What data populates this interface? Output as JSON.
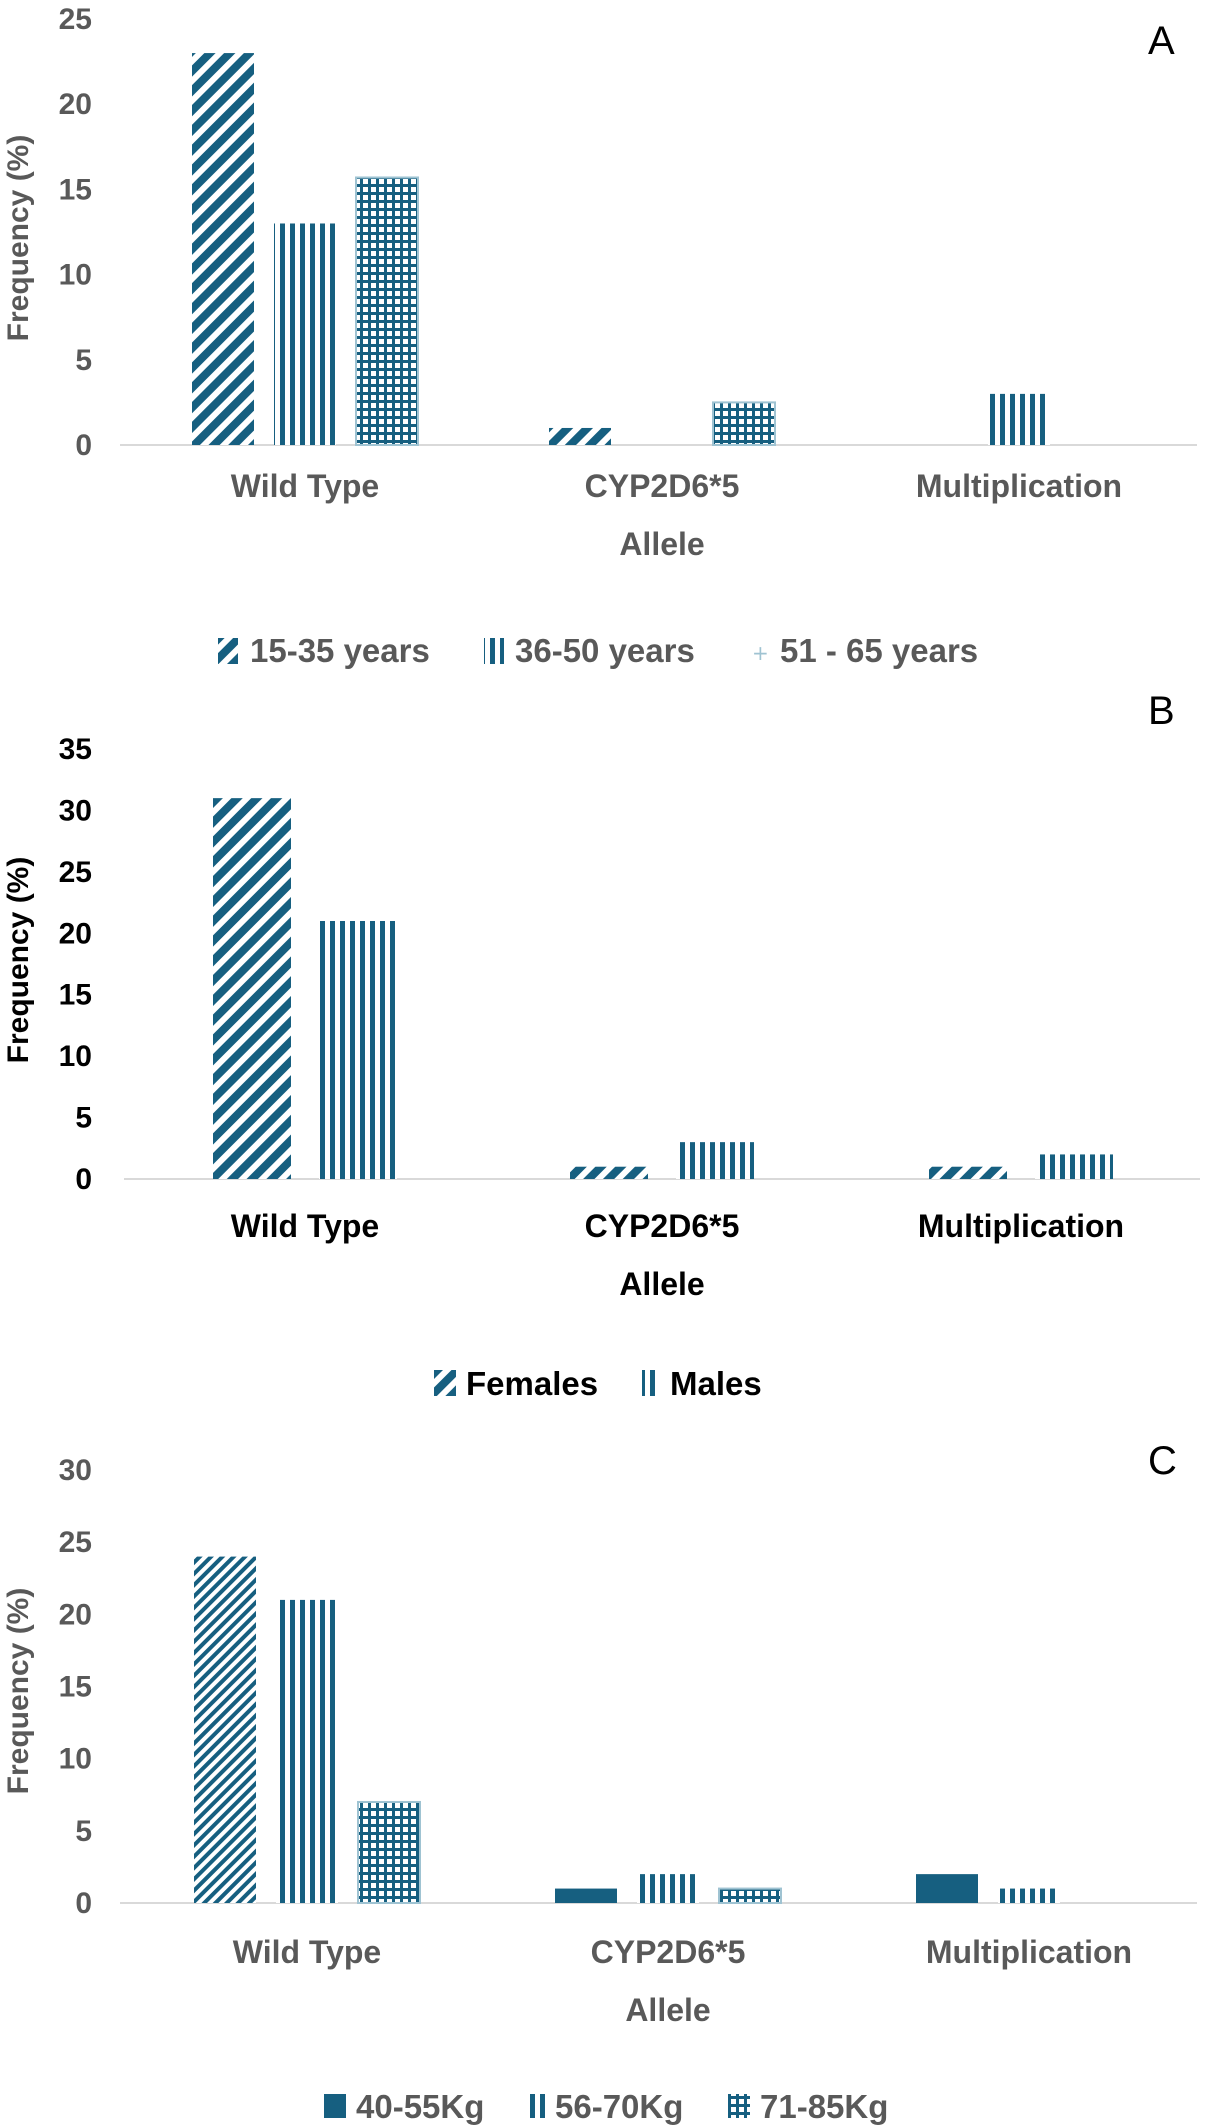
{
  "colors": {
    "bar": "#165f80",
    "axis": "#d9d9d9",
    "text_gray": "#595959",
    "text_black": "#000000"
  },
  "chart_data": [
    {
      "type": "bar",
      "panel_label": "A",
      "categories": [
        "Wild Type",
        "CYP2D6*5",
        "Multiplication"
      ],
      "xlabel": "Allele",
      "ylabel": "Frequency (%)",
      "ylim": [
        0,
        25
      ],
      "yticks": [
        "0",
        "5",
        "10",
        "15",
        "20",
        "25"
      ],
      "series": [
        {
          "name": "15-35 years",
          "values": [
            23,
            1,
            0
          ],
          "pattern": "diagonal"
        },
        {
          "name": "36-50 years",
          "values": [
            13,
            0,
            3
          ],
          "pattern": "vertical"
        },
        {
          "name": "51 - 65 years",
          "values": [
            15.7,
            2.5,
            0
          ],
          "pattern": "grid"
        }
      ],
      "legend_position": "bottom",
      "text_color": "gray"
    },
    {
      "type": "bar",
      "panel_label": "B",
      "categories": [
        "Wild Type",
        "CYP2D6*5",
        "Multiplication"
      ],
      "xlabel": "Allele",
      "ylabel": "Frequency (%)",
      "ylim": [
        0,
        35
      ],
      "yticks": [
        "0",
        "5",
        "10",
        "15",
        "20",
        "25",
        "30",
        "35"
      ],
      "series": [
        {
          "name": "Females",
          "values": [
            31,
            1,
            1
          ],
          "pattern": "diagonal"
        },
        {
          "name": "Males",
          "values": [
            21,
            3,
            2
          ],
          "pattern": "vertical"
        }
      ],
      "legend_position": "bottom",
      "text_color": "black"
    },
    {
      "type": "bar",
      "panel_label": "C",
      "categories": [
        "Wild Type",
        "CYP2D6*5",
        "Multiplication"
      ],
      "xlabel": "Allele",
      "ylabel": "Frequency (%)",
      "ylim": [
        0,
        30
      ],
      "yticks": [
        "0",
        "5",
        "10",
        "15",
        "20",
        "25",
        "30"
      ],
      "series": [
        {
          "name": "40-55Kg",
          "values": [
            0,
            1,
            2
          ],
          "pattern": "solid"
        },
        {
          "name": "56-70Kg",
          "values": [
            21,
            2,
            1
          ],
          "pattern": "vertical"
        },
        {
          "name": "71-85Kg",
          "values": [
            7,
            1,
            0
          ],
          "pattern": "grid"
        }
      ],
      "wild_type_first_bar": {
        "value": 24,
        "pattern": "fine-diagonal"
      },
      "legend_position": "bottom",
      "text_color": "gray"
    }
  ]
}
